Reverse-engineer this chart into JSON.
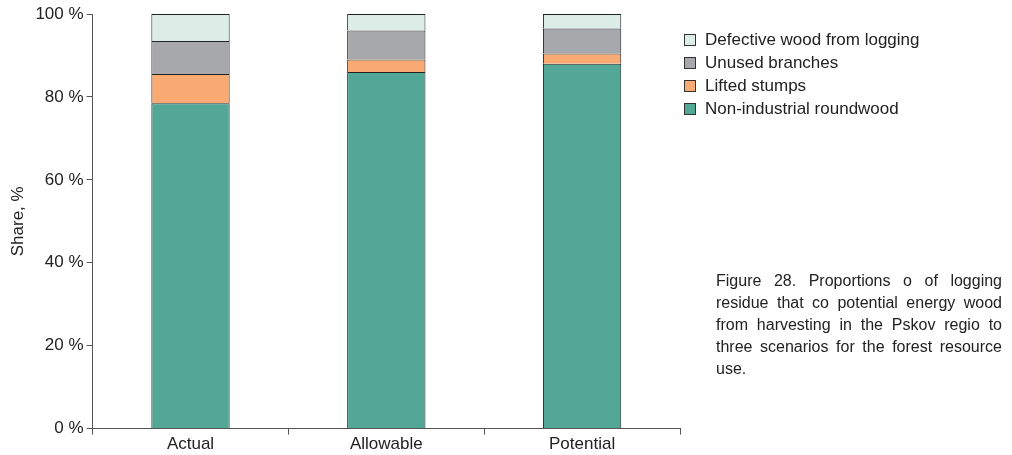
{
  "chart_data": {
    "type": "bar",
    "stacked": true,
    "ylabel": "Share, %",
    "categories": [
      "Actual",
      "Allowable",
      "Potential"
    ],
    "series": [
      {
        "name": "Non-industrial roundwood",
        "color": "#53a796",
        "values": [
          78.5,
          86,
          88
        ]
      },
      {
        "name": "Lifted stumps",
        "color": "#f8aa72",
        "values": [
          7,
          3,
          2.5
        ]
      },
      {
        "name": "Unused branches",
        "color": "#a7a8ab",
        "values": [
          8,
          7,
          6
        ]
      },
      {
        "name": "Defective wood from logging",
        "color": "#dbede6",
        "values": [
          6.5,
          4,
          3.5
        ]
      }
    ],
    "ylim": [
      0,
      100
    ],
    "yticks": [
      {
        "value": 0,
        "label": "0 %"
      },
      {
        "value": 20,
        "label": "20 %"
      },
      {
        "value": 40,
        "label": "40 %"
      },
      {
        "value": 60,
        "label": "60 %"
      },
      {
        "value": 80,
        "label": "80 %"
      },
      {
        "value": 100,
        "label": "100 %"
      }
    ],
    "grid": false,
    "legend": "right",
    "annotations": [
      "Figure 28. Proportions o of logging residue that co potential energy wood from harvesting in the Pskov regio to three scenarios for the forest resource use."
    ]
  }
}
